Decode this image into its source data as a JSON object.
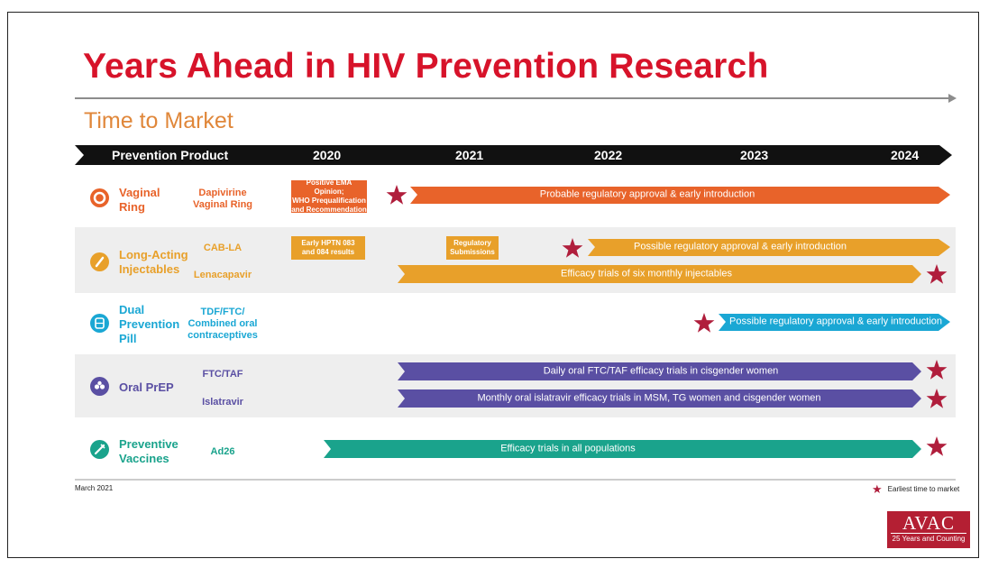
{
  "title": "Years Ahead in HIV Prevention Research",
  "subtitle": "Time to Market",
  "header": {
    "product_label": "Prevention Product",
    "years": [
      "2020",
      "2021",
      "2022",
      "2023",
      "2024"
    ]
  },
  "categories": [
    {
      "name": "Vaginal Ring",
      "line1": "Vaginal",
      "line2": "Ring",
      "color": "#e8632a",
      "icon": "ring-icon"
    },
    {
      "name": "Long-Acting Injectables",
      "line1": "Long-Acting",
      "line2": "Injectables",
      "color": "#e8a02a",
      "icon": "syringe-icon"
    },
    {
      "name": "Dual Prevention Pill",
      "line1": "Dual",
      "line2": "Prevention",
      "line3": "Pill",
      "color": "#1aa7d4",
      "icon": "pill-icon"
    },
    {
      "name": "Oral PrEP",
      "line1": "Oral PrEP",
      "color": "#5a4fa3",
      "icon": "pills-icon"
    },
    {
      "name": "Preventive Vaccines",
      "line1": "Preventive",
      "line2": "Vaccines",
      "color": "#1aa38c",
      "icon": "vaccine-icon"
    }
  ],
  "products": {
    "dapivirine": {
      "line1": "Dapivirine",
      "line2": "Vaginal Ring"
    },
    "cab_la": {
      "line1": "CAB-LA"
    },
    "lenacapavir": {
      "line1": "Lenacapavir"
    },
    "dpp": {
      "line1": "TDF/FTC/",
      "line2": "Combined oral",
      "line3": "contraceptives"
    },
    "ftc_taf": {
      "line1": "FTC/TAF"
    },
    "islatravir": {
      "line1": "Islatravir"
    },
    "ad26": {
      "line1": "Ad26"
    }
  },
  "milestones": {
    "ema": {
      "line1": "Positive EMA Opinion;",
      "line2": "WHO Prequalification",
      "line3": "and Recommendation"
    },
    "hptn": {
      "line1": "Early HPTN 083",
      "line2": "and 084 results"
    },
    "regulatory": {
      "line1": "Regulatory",
      "line2": "Submissions"
    }
  },
  "bars": {
    "ring": "Probable regulatory approval & early introduction",
    "cab": "Possible regulatory approval & early introduction",
    "lena": "Efficacy trials of six monthly injectables",
    "dpp": "Possible regulatory approval & early introduction",
    "ftc": "Daily oral FTC/TAF efficacy trials in cisgender women",
    "isl": "Monthly oral islatravir efficacy trials in MSM, TG women and cisgender women",
    "vac": "Efficacy trials in all populations"
  },
  "footer": {
    "date": "March 2021",
    "legend": "Earliest time to market"
  },
  "logo": {
    "name": "AVAC",
    "tagline": "25 Years and Counting"
  },
  "colors": {
    "title": "#d7132a",
    "subtitle": "#e0873a",
    "star": "#b01e3c",
    "header_bg": "#111111"
  }
}
